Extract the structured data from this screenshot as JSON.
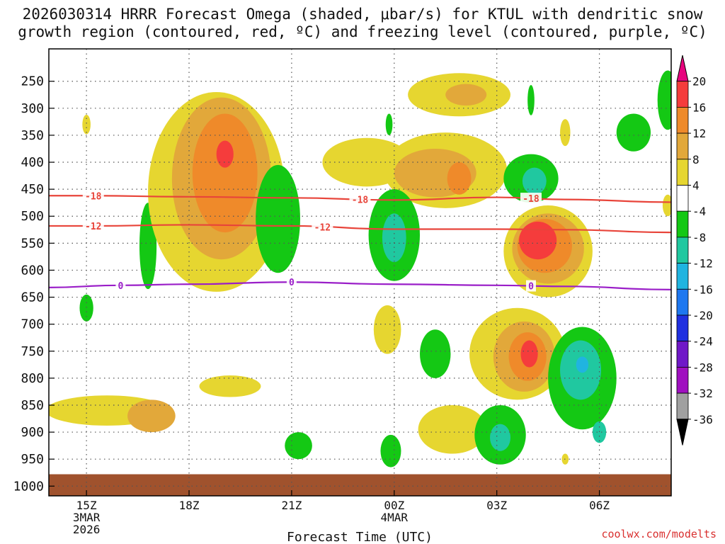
{
  "title": {
    "line1": "2026030314 HRRR Forecast Omega (shaded, μbar/s) for KTUL with dendritic snow",
    "line2": "growth region (contoured, red, ºC) and freezing level (contoured, purple, ºC)"
  },
  "credit": "coolwx.com/modelts",
  "chart_data": {
    "type": "time-height cross-section (filled contours)",
    "xlabel": "Forecast Time (UTC)",
    "ylabel": "",
    "x_ticks": [
      {
        "hours": 0,
        "label": "15Z",
        "sub": [
          "3MAR",
          "2026"
        ]
      },
      {
        "hours": 3,
        "label": "18Z",
        "sub": []
      },
      {
        "hours": 6,
        "label": "21Z",
        "sub": []
      },
      {
        "hours": 9,
        "label": "00Z",
        "sub": [
          "4MAR"
        ]
      },
      {
        "hours": 12,
        "label": "03Z",
        "sub": []
      },
      {
        "hours": 15,
        "label": "06Z",
        "sub": []
      }
    ],
    "x_range_hours": [
      -1.1,
      17.1
    ],
    "y_ticks": [
      250,
      300,
      350,
      400,
      450,
      500,
      550,
      600,
      650,
      700,
      750,
      800,
      850,
      900,
      950,
      1000
    ],
    "y_range_hpa": [
      190,
      1018
    ],
    "grid": "dotted",
    "ground_color": "#a0522d",
    "ground_from_hpa": 978,
    "colorbar": {
      "levels": [
        -36,
        -32,
        -28,
        -24,
        -20,
        -16,
        -12,
        -8,
        -4,
        4,
        8,
        12,
        16,
        20
      ],
      "labels": [
        "20",
        "16",
        "12",
        "8",
        "4",
        "-4",
        "-8",
        "-12",
        "-16",
        "-20",
        "-24",
        "-28",
        "-32",
        "-36"
      ],
      "bins": [
        {
          "from": 20,
          "to": 24,
          "color": "#e7047e",
          "shape": "arrow-up"
        },
        {
          "from": 16,
          "to": 20,
          "color": "#f53c3c"
        },
        {
          "from": 12,
          "to": 16,
          "color": "#ef8a2a"
        },
        {
          "from": 8,
          "to": 12,
          "color": "#e2a83a"
        },
        {
          "from": 4,
          "to": 8,
          "color": "#e6d630"
        },
        {
          "from": -4,
          "to": 4,
          "color": "#ffffff"
        },
        {
          "from": -8,
          "to": -4,
          "color": "#14c814"
        },
        {
          "from": -12,
          "to": -8,
          "color": "#20c8a0"
        },
        {
          "from": -16,
          "to": -12,
          "color": "#20b4e0"
        },
        {
          "from": -20,
          "to": -16,
          "color": "#1e78f0"
        },
        {
          "from": -24,
          "to": -20,
          "color": "#2030e0"
        },
        {
          "from": -28,
          "to": -24,
          "color": "#7018c8"
        },
        {
          "from": -32,
          "to": -28,
          "color": "#a010c0"
        },
        {
          "from": -36,
          "to": -32,
          "color": "#a0a0a0"
        },
        {
          "from": -40,
          "to": -36,
          "color": "#000000",
          "shape": "arrow-down"
        }
      ]
    },
    "contours": [
      {
        "name": "-18 °C isotherm",
        "label": "-18",
        "color": "#e8443a",
        "points": [
          [
            -1.1,
            462
          ],
          [
            0.2,
            462
          ],
          [
            3,
            464
          ],
          [
            6,
            466
          ],
          [
            9,
            470
          ],
          [
            12,
            465
          ],
          [
            14,
            469
          ],
          [
            17.1,
            474
          ]
        ],
        "label_at": [
          0.2,
          8.0,
          13.0
        ]
      },
      {
        "name": "-12 °C isotherm",
        "label": "-12",
        "color": "#e8443a",
        "points": [
          [
            -1.1,
            518
          ],
          [
            0.2,
            518
          ],
          [
            3,
            516
          ],
          [
            6,
            518
          ],
          [
            9,
            524
          ],
          [
            12,
            524
          ],
          [
            14,
            525
          ],
          [
            17.1,
            530
          ]
        ],
        "label_at": [
          0.2,
          6.9
        ]
      },
      {
        "name": "0 °C freezing level",
        "label": "0",
        "color": "#9a1ec8",
        "points": [
          [
            -1.1,
            632
          ],
          [
            1,
            628
          ],
          [
            3,
            626
          ],
          [
            6,
            622
          ],
          [
            9,
            626
          ],
          [
            12,
            628
          ],
          [
            14,
            630
          ],
          [
            17.1,
            636
          ]
        ],
        "label_at": [
          1.0,
          6.0,
          13.0
        ]
      }
    ],
    "omega_features": [
      {
        "hours": 0.0,
        "hpa": 330,
        "rx": 0.12,
        "ry": 18,
        "value": 5,
        "sign": "up"
      },
      {
        "hours": 0.0,
        "hpa": 670,
        "rx": 0.2,
        "ry": 25,
        "value": -6,
        "sign": "down"
      },
      {
        "hours": 1.8,
        "hpa": 555,
        "rx": 0.25,
        "ry": 80,
        "value": -6,
        "sign": "down"
      },
      {
        "hours": 3.8,
        "hpa": 455,
        "rx": 2.0,
        "ry": 185,
        "value": 7,
        "sign": "up"
      },
      {
        "hours": 3.95,
        "hpa": 430,
        "rx": 1.45,
        "ry": 150,
        "value": 11,
        "sign": "up"
      },
      {
        "hours": 4.05,
        "hpa": 420,
        "rx": 0.95,
        "ry": 110,
        "value": 14,
        "sign": "up"
      },
      {
        "hours": 4.05,
        "hpa": 385,
        "rx": 0.25,
        "ry": 25,
        "value": 18,
        "sign": "up"
      },
      {
        "hours": 5.6,
        "hpa": 505,
        "rx": 0.65,
        "ry": 100,
        "value": -6,
        "sign": "down"
      },
      {
        "hours": 0.6,
        "hpa": 860,
        "rx": 1.8,
        "ry": 28,
        "value": 5,
        "sign": "up"
      },
      {
        "hours": 1.9,
        "hpa": 870,
        "rx": 0.7,
        "ry": 30,
        "value": 8,
        "sign": "up"
      },
      {
        "hours": 4.2,
        "hpa": 815,
        "rx": 0.9,
        "ry": 20,
        "value": 5,
        "sign": "up"
      },
      {
        "hours": 6.2,
        "hpa": 925,
        "rx": 0.4,
        "ry": 25,
        "value": -6,
        "sign": "down"
      },
      {
        "hours": 8.2,
        "hpa": 400,
        "rx": 1.3,
        "ry": 45,
        "value": 5,
        "sign": "up"
      },
      {
        "hours": 10.5,
        "hpa": 415,
        "rx": 1.8,
        "ry": 70,
        "value": 6,
        "sign": "up"
      },
      {
        "hours": 10.2,
        "hpa": 420,
        "rx": 1.2,
        "ry": 45,
        "value": 10,
        "sign": "up"
      },
      {
        "hours": 10.9,
        "hpa": 430,
        "rx": 0.35,
        "ry": 30,
        "value": 13,
        "sign": "up"
      },
      {
        "hours": 10.9,
        "hpa": 275,
        "rx": 1.5,
        "ry": 40,
        "value": 6,
        "sign": "up"
      },
      {
        "hours": 11.1,
        "hpa": 275,
        "rx": 0.6,
        "ry": 20,
        "value": 10,
        "sign": "up"
      },
      {
        "hours": 9.0,
        "hpa": 535,
        "rx": 0.75,
        "ry": 85,
        "value": -7,
        "sign": "down"
      },
      {
        "hours": 9.0,
        "hpa": 540,
        "rx": 0.35,
        "ry": 45,
        "value": -11,
        "sign": "down"
      },
      {
        "hours": 8.85,
        "hpa": 330,
        "rx": 0.1,
        "ry": 20,
        "value": -5,
        "sign": "down"
      },
      {
        "hours": 8.8,
        "hpa": 710,
        "rx": 0.4,
        "ry": 45,
        "value": 5,
        "sign": "up"
      },
      {
        "hours": 10.2,
        "hpa": 755,
        "rx": 0.45,
        "ry": 45,
        "value": -6,
        "sign": "down"
      },
      {
        "hours": 10.7,
        "hpa": 895,
        "rx": 1.0,
        "ry": 45,
        "value": 5,
        "sign": "up"
      },
      {
        "hours": 8.9,
        "hpa": 935,
        "rx": 0.3,
        "ry": 30,
        "value": -6,
        "sign": "down"
      },
      {
        "hours": 13.0,
        "hpa": 430,
        "rx": 0.8,
        "ry": 45,
        "value": -6,
        "sign": "down"
      },
      {
        "hours": 13.1,
        "hpa": 435,
        "rx": 0.35,
        "ry": 25,
        "value": -9,
        "sign": "down"
      },
      {
        "hours": 13.0,
        "hpa": 285,
        "rx": 0.1,
        "ry": 28,
        "value": -5,
        "sign": "down"
      },
      {
        "hours": 14.0,
        "hpa": 345,
        "rx": 0.15,
        "ry": 25,
        "value": 5,
        "sign": "up"
      },
      {
        "hours": 16.0,
        "hpa": 345,
        "rx": 0.5,
        "ry": 35,
        "value": -6,
        "sign": "down"
      },
      {
        "hours": 17.0,
        "hpa": 285,
        "rx": 0.3,
        "ry": 55,
        "value": -6,
        "sign": "down"
      },
      {
        "hours": 17.0,
        "hpa": 480,
        "rx": 0.15,
        "ry": 20,
        "value": 5,
        "sign": "up"
      },
      {
        "hours": 13.5,
        "hpa": 565,
        "rx": 1.3,
        "ry": 85,
        "value": 6,
        "sign": "up"
      },
      {
        "hours": 13.5,
        "hpa": 560,
        "rx": 1.05,
        "ry": 65,
        "value": 10,
        "sign": "up"
      },
      {
        "hours": 13.4,
        "hpa": 555,
        "rx": 0.8,
        "ry": 50,
        "value": 14,
        "sign": "up"
      },
      {
        "hours": 13.2,
        "hpa": 545,
        "rx": 0.55,
        "ry": 35,
        "value": 17,
        "sign": "up"
      },
      {
        "hours": 12.6,
        "hpa": 755,
        "rx": 1.4,
        "ry": 85,
        "value": 6,
        "sign": "up"
      },
      {
        "hours": 12.8,
        "hpa": 760,
        "rx": 0.9,
        "ry": 65,
        "value": 10,
        "sign": "up"
      },
      {
        "hours": 12.9,
        "hpa": 760,
        "rx": 0.55,
        "ry": 45,
        "value": 15,
        "sign": "up"
      },
      {
        "hours": 12.95,
        "hpa": 755,
        "rx": 0.25,
        "ry": 25,
        "value": 18,
        "sign": "up"
      },
      {
        "hours": 14.5,
        "hpa": 800,
        "rx": 1.0,
        "ry": 95,
        "value": -6,
        "sign": "down"
      },
      {
        "hours": 14.45,
        "hpa": 785,
        "rx": 0.6,
        "ry": 55,
        "value": -10,
        "sign": "down"
      },
      {
        "hours": 14.5,
        "hpa": 775,
        "rx": 0.18,
        "ry": 15,
        "value": -14,
        "sign": "down"
      },
      {
        "hours": 15.0,
        "hpa": 900,
        "rx": 0.2,
        "ry": 20,
        "value": -10,
        "sign": "down"
      },
      {
        "hours": 12.1,
        "hpa": 905,
        "rx": 0.75,
        "ry": 55,
        "value": -6,
        "sign": "down"
      },
      {
        "hours": 12.1,
        "hpa": 910,
        "rx": 0.3,
        "ry": 25,
        "value": -10,
        "sign": "down"
      },
      {
        "hours": 14.0,
        "hpa": 950,
        "rx": 0.1,
        "ry": 10,
        "value": 5,
        "sign": "up"
      }
    ]
  }
}
